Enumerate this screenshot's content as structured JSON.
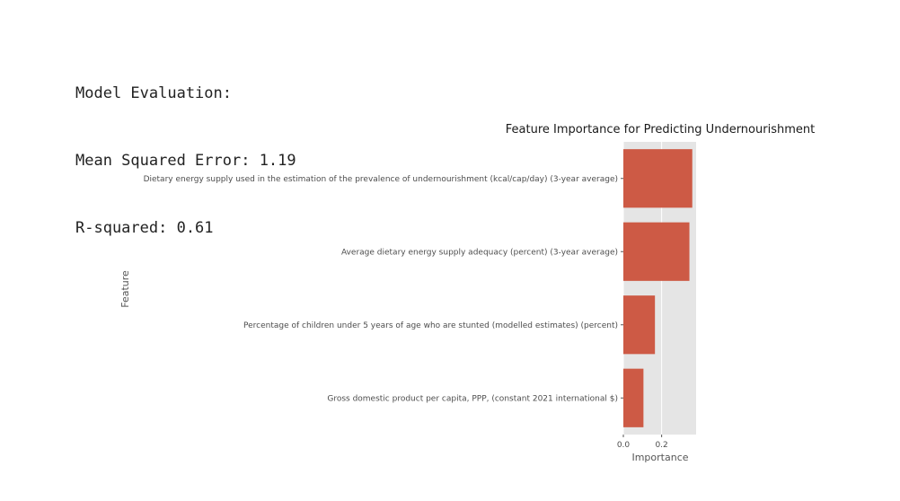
{
  "console": {
    "line1": "Model Evaluation:",
    "line2": "Mean Squared Error: 1.19",
    "line3": "R-squared: 0.61"
  },
  "chart_data": {
    "type": "bar",
    "orientation": "horizontal",
    "title": "Feature Importance for Predicting Undernourishment",
    "xlabel": "Importance",
    "ylabel": "Feature",
    "categories": [
      "Dietary energy supply used in the estimation of the prevalence of undernourishment (kcal/cap/day) (3-year average)",
      "Average dietary energy supply adequacy (percent) (3-year average)",
      "Percentage of children under 5 years of age who are stunted (modelled estimates) (percent)",
      "Gross domestic product per capita, PPP, (constant 2021 international $)"
    ],
    "values": [
      0.36,
      0.345,
      0.165,
      0.105
    ],
    "xlim": [
      0,
      0.38
    ],
    "xticks": [
      0.0,
      0.2
    ],
    "xtick_labels": [
      "0.0",
      "0.2"
    ],
    "grid": true,
    "colors": {
      "bar": "#cd5a45",
      "panel": "#e5e5e5",
      "grid": "#ffffff"
    }
  }
}
